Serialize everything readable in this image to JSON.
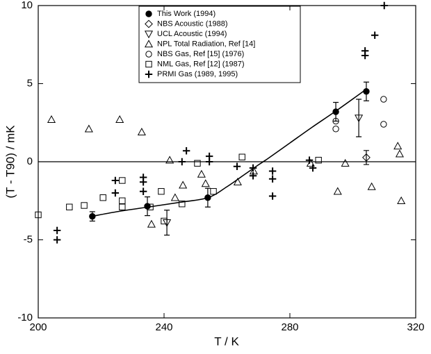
{
  "chart_data": {
    "type": "scatter",
    "xlabel": "T / K",
    "ylabel": "(T - T90) / mK",
    "xlim": [
      200,
      320
    ],
    "xticks": [
      200,
      240,
      280,
      320
    ],
    "ylim": [
      -10,
      10
    ],
    "yticks": [
      -10,
      -5,
      0,
      5,
      10
    ],
    "hlines": [
      0
    ],
    "fit_curve": {
      "x": [
        217,
        225,
        235,
        245,
        254,
        260,
        265,
        270,
        273,
        280,
        287,
        295,
        304
      ],
      "y": [
        -3.5,
        -3.2,
        -2.9,
        -2.6,
        -2.3,
        -1.6,
        -0.9,
        -0.2,
        0.2,
        1.2,
        2.2,
        3.3,
        4.6
      ]
    },
    "series": [
      {
        "name": "This Work (1994)",
        "marker": "filled-circle",
        "color": "#000000",
        "x": [
          217.2,
          234.7,
          253.9,
          294.6,
          304.3
        ],
        "values": [
          -3.5,
          -2.85,
          -2.3,
          3.2,
          4.5
        ],
        "errors": [
          0.3,
          0.6,
          0.6,
          0.6,
          0.6
        ]
      },
      {
        "name": "NBS Acoustic (1988)",
        "marker": "diamond",
        "color": "#000000",
        "x": [
          304.3
        ],
        "values": [
          0.27
        ],
        "errors": [
          0.45
        ]
      },
      {
        "name": "UCL Acoustic (1994)",
        "marker": "triangle-down",
        "color": "#000000",
        "x": [
          240.9,
          301.9
        ],
        "values": [
          -3.9,
          2.8
        ],
        "errors": [
          0.8,
          1.2
        ]
      },
      {
        "name": "NPL Total Radiation, Ref [14]",
        "marker": "triangle-up",
        "color": "#000000",
        "x": [
          204.2,
          216.1,
          225.9,
          232.9,
          241.8,
          236,
          243.5,
          246,
          251.9,
          253.2,
          263.4,
          268.5,
          286.6,
          295.2,
          297.6,
          306,
          314.3,
          314.9,
          315.4
        ],
        "values": [
          2.7,
          2.1,
          2.7,
          1.9,
          0.1,
          -4.0,
          -2.3,
          -1.5,
          -0.8,
          -1.4,
          -1.3,
          -0.6,
          -0.1,
          -1.9,
          -0.1,
          -1.6,
          1.0,
          0.5,
          -2.5
        ]
      },
      {
        "name": "NBS Gas, Ref [15] (1976)",
        "marker": "circle",
        "color": "#000000",
        "x": [
          294.6,
          294.6,
          309.8,
          309.8
        ],
        "values": [
          2.6,
          2.1,
          4.0,
          2.4
        ]
      },
      {
        "name": "NML Gas, Ref [12] (1987)",
        "marker": "square",
        "color": "#000000",
        "x": [
          200,
          209.9,
          214.6,
          220.6,
          226.7,
          226.7,
          226.7,
          235.6,
          239.1,
          240,
          245.7,
          250.6,
          255.7,
          264.8,
          289.1
        ],
        "values": [
          -3.4,
          -2.9,
          -2.8,
          -2.3,
          -1.2,
          -2.5,
          -2.9,
          -2.9,
          -1.9,
          -3.8,
          -2.7,
          -0.1,
          -1.9,
          0.3,
          0.1
        ]
      },
      {
        "name": "PRMI Gas (1989, 1995)",
        "marker": "plus",
        "color": "#000000",
        "x": [
          206,
          206,
          224.5,
          224.5,
          233.4,
          233.4,
          233.4,
          247.1,
          245.7,
          254.4,
          254.4,
          263.2,
          268.3,
          268.3,
          274.5,
          274.5,
          274.5,
          286.2,
          287.3,
          303.9,
          303.9,
          307,
          310
        ],
        "values": [
          -4.4,
          -5.0,
          -1.2,
          -2.0,
          -1.0,
          -1.3,
          -1.9,
          0.7,
          0.0,
          0.35,
          0.0,
          -0.3,
          -0.4,
          -0.9,
          -0.6,
          -1.1,
          -2.2,
          0.1,
          -0.4,
          7.1,
          6.8,
          8.1,
          10.0
        ]
      }
    ]
  }
}
